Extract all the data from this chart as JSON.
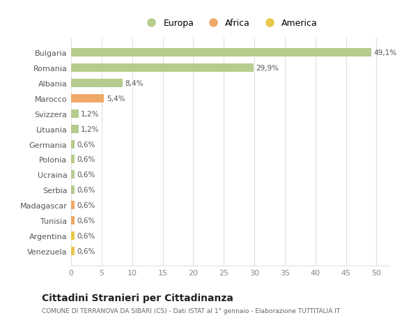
{
  "categories": [
    "Venezuela",
    "Argentina",
    "Tunisia",
    "Madagascar",
    "Serbia",
    "Ucraina",
    "Polonia",
    "Germania",
    "Lituania",
    "Svizzera",
    "Marocco",
    "Albania",
    "Romania",
    "Bulgaria"
  ],
  "values": [
    0.6,
    0.6,
    0.6,
    0.6,
    0.6,
    0.6,
    0.6,
    0.6,
    1.2,
    1.2,
    5.4,
    8.4,
    29.9,
    49.1
  ],
  "labels": [
    "0,6%",
    "0,6%",
    "0,6%",
    "0,6%",
    "0,6%",
    "0,6%",
    "0,6%",
    "0,6%",
    "1,2%",
    "1,2%",
    "5,4%",
    "8,4%",
    "29,9%",
    "49,1%"
  ],
  "colors": [
    "#e8c84a",
    "#e8c84a",
    "#f0a868",
    "#f0a868",
    "#b5cc8e",
    "#b5cc8e",
    "#b5cc8e",
    "#b5cc8e",
    "#b5cc8e",
    "#b5cc8e",
    "#f0a868",
    "#b5cc8e",
    "#b5cc8e",
    "#b5cc8e"
  ],
  "legend": [
    {
      "label": "Europa",
      "color": "#b5cc8e"
    },
    {
      "label": "Africa",
      "color": "#f0a868"
    },
    {
      "label": "America",
      "color": "#e8c84a"
    }
  ],
  "title": "Cittadini Stranieri per Cittadinanza",
  "subtitle": "COMUNE DI TERRANOVA DA SIBARI (CS) - Dati ISTAT al 1° gennaio - Elaborazione TUTTITALIA.IT",
  "xlim": [
    0,
    52
  ],
  "xticks": [
    0,
    5,
    10,
    15,
    20,
    25,
    30,
    35,
    40,
    45,
    50
  ],
  "bg_color": "#ffffff",
  "grid_color": "#e0e0e0"
}
